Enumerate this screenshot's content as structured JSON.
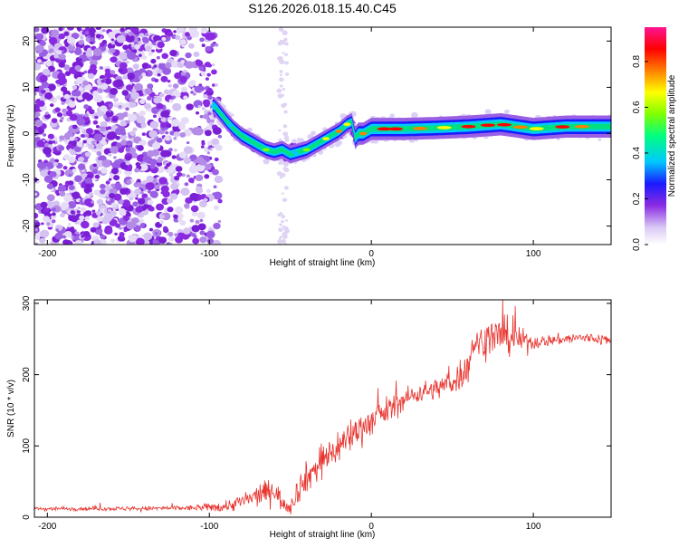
{
  "title": "S126.2026.018.15.40.C45",
  "colors": {
    "axis": "#000000",
    "snr_line": "#e8332e",
    "colormap": [
      "#ffffff",
      "#c9a8f0",
      "#8a2be2",
      "#0000ff",
      "#00c8ff",
      "#00ff80",
      "#80ff00",
      "#ffff00",
      "#ff8000",
      "#ff0000",
      "#ff1493"
    ]
  },
  "chart_data": [
    {
      "type": "heatmap",
      "xlabel": "Height of straight line (km)",
      "ylabel": "Frequency (Hz)",
      "xlim": [
        -208,
        148
      ],
      "ylim": [
        -24,
        23
      ],
      "x_ticks": [
        -200,
        -100,
        0,
        100
      ],
      "x_tick_labels": [
        "-200",
        "-100",
        "0",
        "100"
      ],
      "y_ticks": [
        -20,
        -10,
        0,
        10,
        20
      ],
      "y_tick_labels": [
        "-20",
        "-10",
        "0",
        "10",
        "20"
      ],
      "ridge": {
        "x": [
          -97,
          -90,
          -85,
          -80,
          -75,
          -70,
          -65,
          -60,
          -55,
          -50,
          -45,
          -40,
          -35,
          -30,
          -25,
          -20,
          -15,
          -12,
          -10,
          -8,
          -5,
          0,
          10,
          20,
          40,
          60,
          80,
          90,
          100,
          120,
          148
        ],
        "y": [
          6,
          3,
          1,
          -0.5,
          -1.5,
          -2.5,
          -3.5,
          -4,
          -3.5,
          -4.5,
          -4,
          -3.5,
          -2.5,
          -1.5,
          -0.5,
          0.5,
          2,
          2.5,
          -1,
          0,
          0,
          1,
          1,
          1,
          1.2,
          1.5,
          2,
          1.5,
          1,
          1.5,
          1.5
        ]
      },
      "colorbar": {
        "label": "Normalized spectral amplitude",
        "range": [
          0,
          0.95
        ],
        "ticks": [
          0.0,
          0.2,
          0.4,
          0.6,
          0.8
        ],
        "tick_labels": [
          "0.0",
          "0.2",
          "0.4",
          "0.6",
          "0.8"
        ]
      }
    },
    {
      "type": "line",
      "xlabel": "Height of straight line (km)",
      "ylabel": "SNR (10 * v/v)",
      "xlim": [
        -208,
        148
      ],
      "ylim": [
        0,
        305
      ],
      "x_ticks": [
        -200,
        -100,
        0,
        100
      ],
      "x_tick_labels": [
        "-200",
        "-100",
        "0",
        "100"
      ],
      "y_ticks": [
        0,
        100,
        200,
        300
      ],
      "y_tick_labels": [
        "0",
        "100",
        "200",
        "300"
      ],
      "trend": {
        "x": [
          -208,
          -150,
          -110,
          -90,
          -80,
          -70,
          -60,
          -55,
          -50,
          -45,
          -40,
          -30,
          -20,
          -10,
          0,
          10,
          20,
          30,
          40,
          50,
          55,
          60,
          62,
          70,
          80,
          90,
          100,
          110,
          120,
          130,
          140,
          148
        ],
        "y": [
          12,
          12,
          13,
          15,
          22,
          30,
          40,
          20,
          15,
          40,
          55,
          80,
          100,
          120,
          135,
          150,
          165,
          175,
          180,
          190,
          200,
          210,
          240,
          250,
          255,
          250,
          245,
          248,
          250,
          252,
          250,
          248
        ],
        "noise": [
          3,
          3,
          4,
          8,
          12,
          15,
          18,
          12,
          12,
          20,
          22,
          25,
          25,
          25,
          20,
          20,
          15,
          15,
          15,
          20,
          25,
          20,
          15,
          25,
          30,
          20,
          10,
          8,
          8,
          8,
          8,
          8
        ]
      }
    }
  ]
}
